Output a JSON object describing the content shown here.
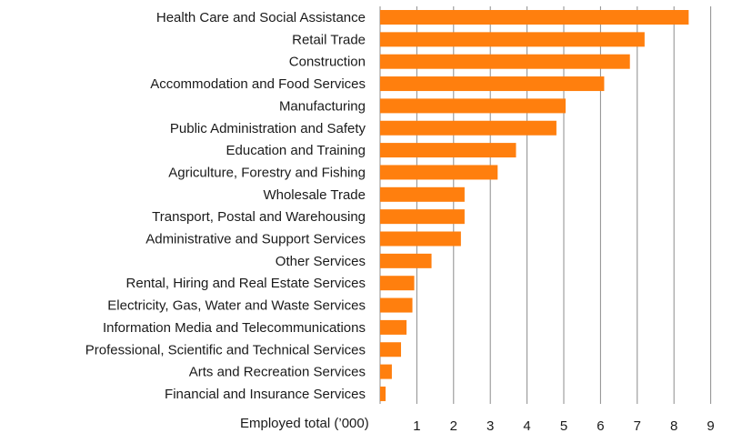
{
  "chart_data": {
    "type": "bar",
    "orientation": "horizontal",
    "categories": [
      "Health Care and Social Assistance",
      "Retail Trade",
      "Construction",
      "Accommodation and Food Services",
      "Manufacturing",
      "Public Administration and Safety",
      "Education and Training",
      "Agriculture, Forestry and Fishing",
      "Wholesale Trade",
      "Transport, Postal and Warehousing",
      "Administrative and Support Services",
      "Other Services",
      "Rental, Hiring and Real Estate Services",
      "Electricity, Gas, Water and Waste Services",
      "Information Media and Telecommunications",
      "Professional, Scientific and Technical Services",
      "Arts and Recreation Services",
      "Financial and Insurance Services"
    ],
    "values": [
      8.4,
      7.2,
      6.8,
      6.1,
      5.05,
      4.8,
      3.7,
      3.2,
      2.3,
      2.3,
      2.2,
      1.4,
      0.93,
      0.88,
      0.72,
      0.57,
      0.32,
      0.15
    ],
    "xlabel": "Employed total (’000)",
    "ylabel": "",
    "xlim": [
      0,
      9
    ],
    "xticks": [
      "1",
      "2",
      "3",
      "4",
      "5",
      "6",
      "7",
      "8",
      "9"
    ],
    "grid": true,
    "legend": "none",
    "bar_color": "#ff7f0e"
  }
}
